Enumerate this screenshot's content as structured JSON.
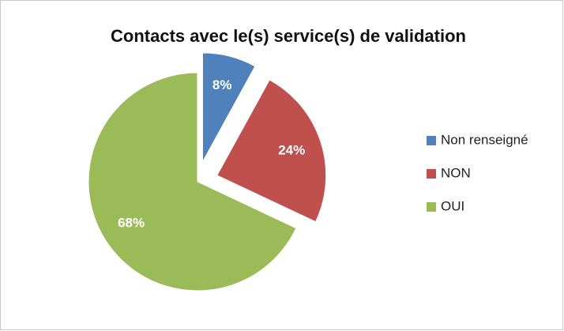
{
  "chart_data": {
    "type": "pie",
    "title": "Contacts avec le(s) service(s) de validation",
    "categories": [
      "Non renseigné",
      "NON",
      "OUI"
    ],
    "values": [
      8,
      24,
      68
    ],
    "value_labels": [
      "8%",
      "24%",
      "68%"
    ],
    "colors": [
      "#4f81bd",
      "#c0504d",
      "#9bbb59"
    ],
    "exploded": [
      true,
      true,
      false
    ],
    "legend": "right"
  }
}
